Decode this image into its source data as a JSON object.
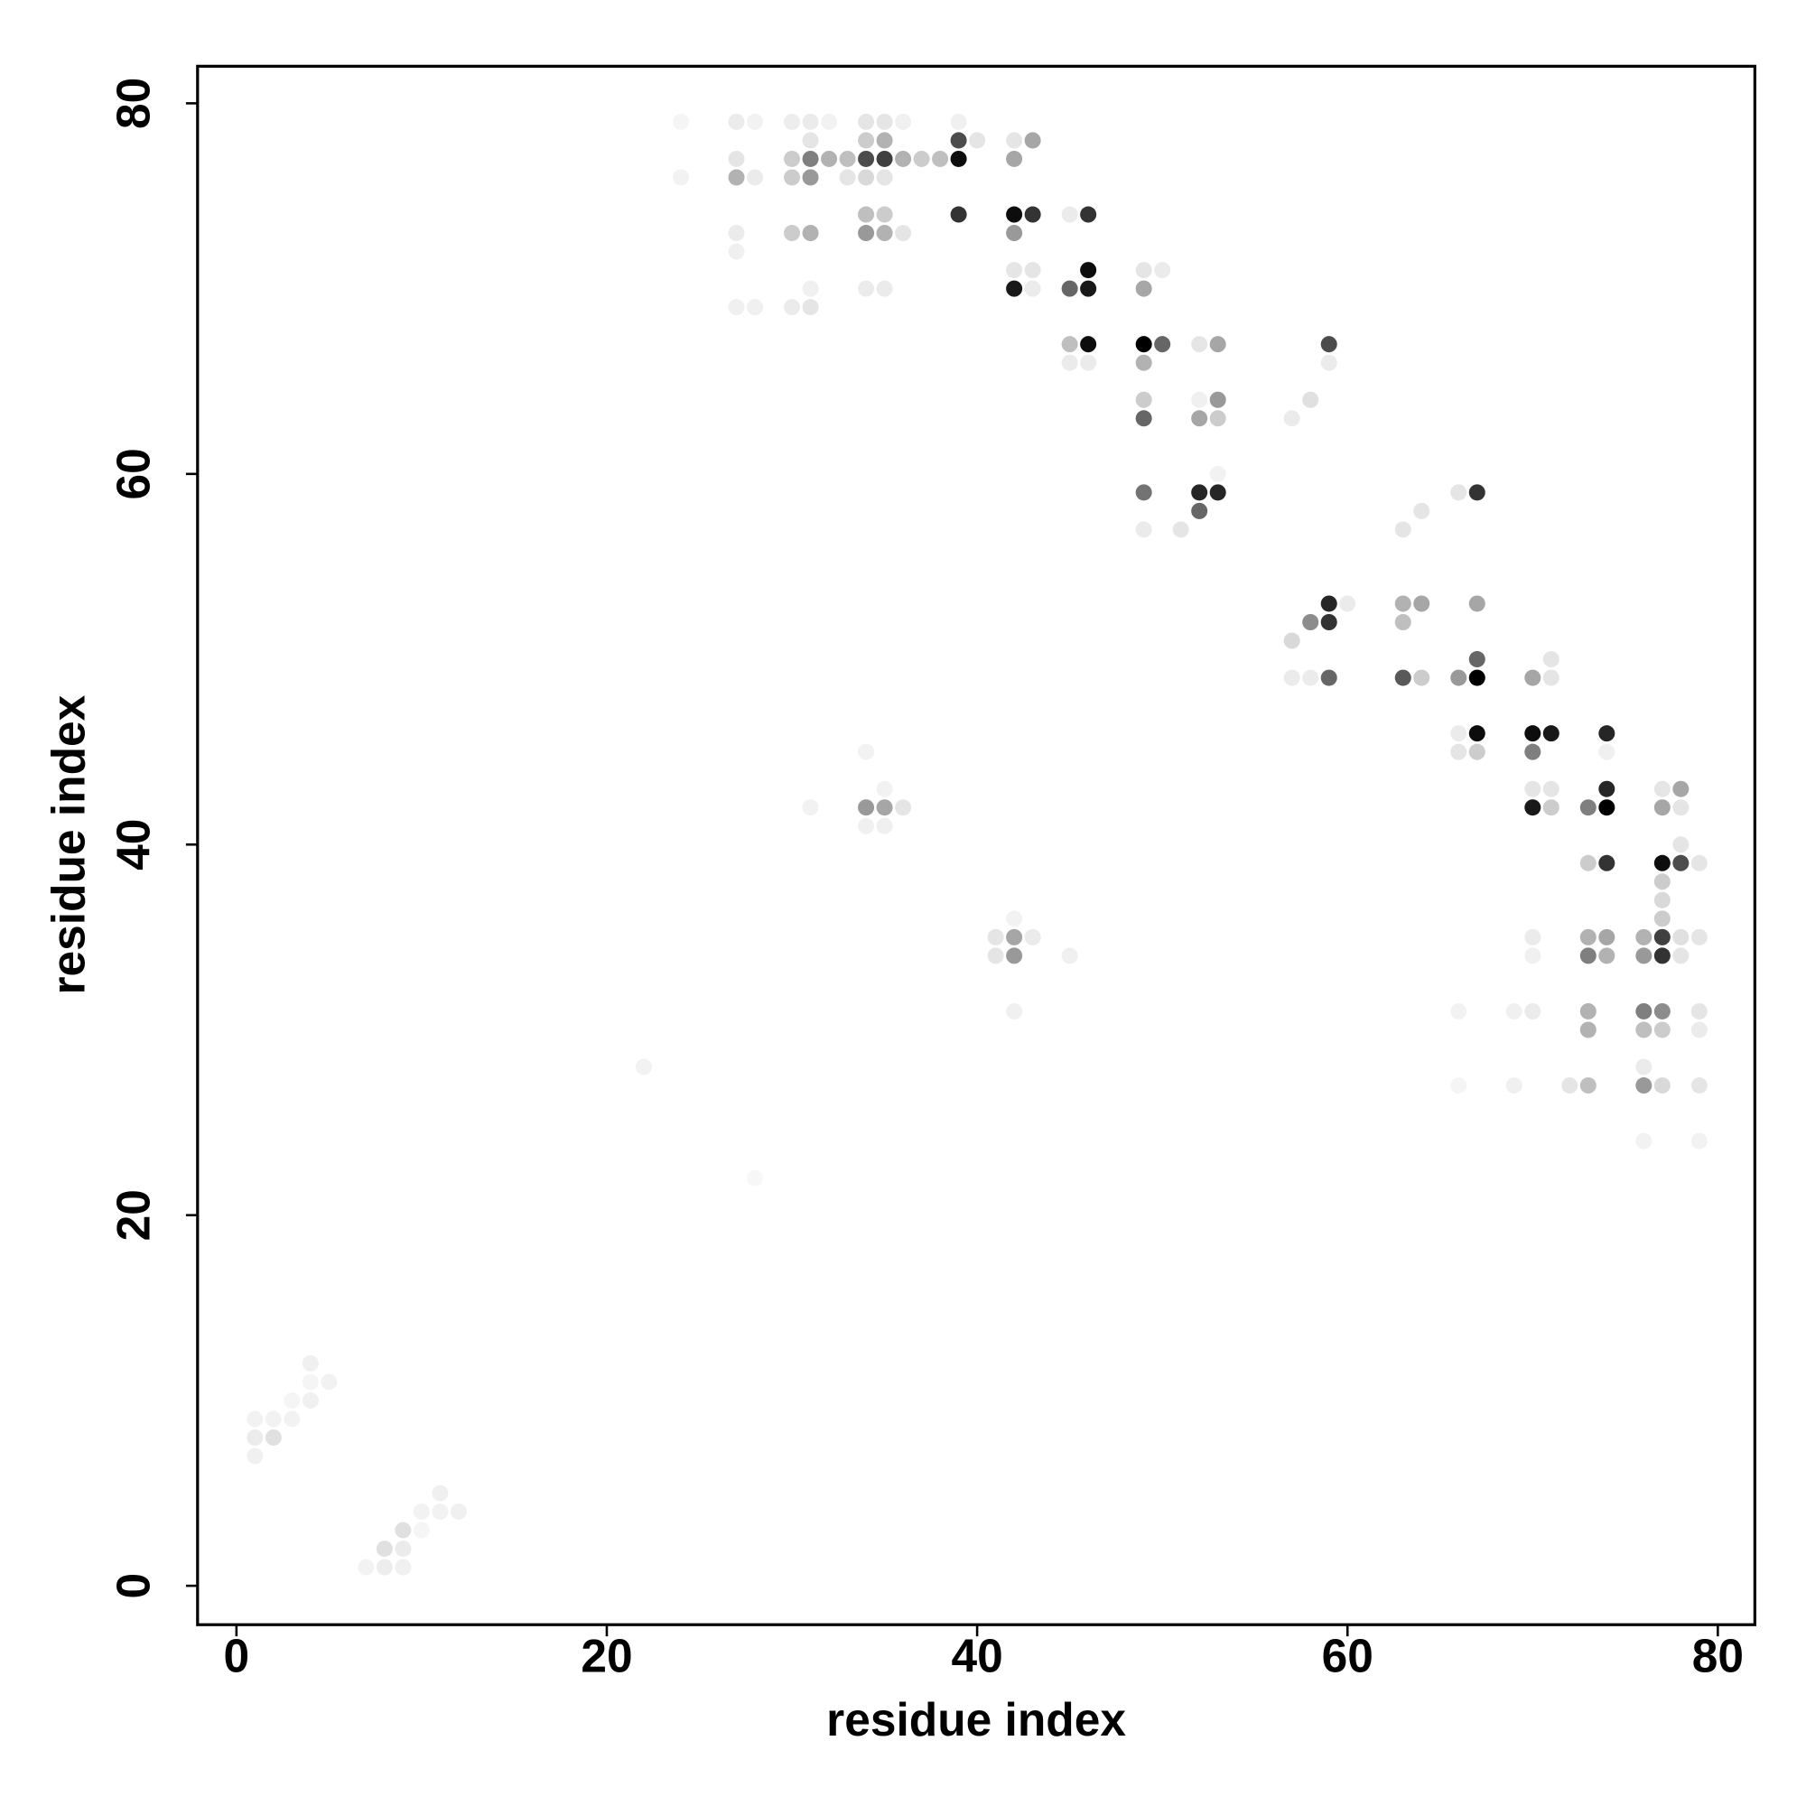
{
  "chart_data": {
    "type": "scatter",
    "xlabel": "residue index",
    "ylabel": "residue index",
    "xlim": [
      -2.1,
      82
    ],
    "ylim": [
      -2.1,
      82
    ],
    "xticks": [
      0,
      20,
      40,
      60,
      80
    ],
    "yticks": [
      0,
      20,
      40,
      60,
      80
    ],
    "color": "#000000",
    "x": [
      1,
      2,
      3,
      1,
      2,
      1,
      4,
      4,
      5,
      4,
      3,
      9,
      8,
      9,
      7,
      8,
      9,
      10,
      11,
      11,
      12,
      10,
      22,
      28,
      24,
      27,
      28,
      30,
      31,
      32,
      34,
      35,
      36,
      39,
      27,
      30,
      31,
      32,
      33,
      34,
      35,
      36,
      37,
      38,
      39,
      42,
      27,
      28,
      30,
      31,
      33,
      34,
      35,
      24,
      31,
      34,
      35,
      39,
      40,
      42,
      43,
      30,
      31,
      34,
      35,
      36,
      27,
      27,
      34,
      35,
      39,
      42,
      43,
      46,
      45,
      42,
      34,
      35,
      31,
      30,
      31,
      27,
      28,
      42,
      43,
      42,
      43,
      45,
      46,
      46,
      49,
      49,
      50,
      45,
      46,
      45,
      46,
      49,
      50,
      52,
      53,
      49,
      59,
      59,
      49,
      49,
      52,
      53,
      53,
      52,
      57,
      58,
      49,
      52,
      53,
      52,
      49,
      51,
      53,
      66,
      67,
      63,
      64,
      59,
      60,
      63,
      64,
      67,
      59,
      58,
      63,
      57,
      57,
      58,
      59,
      63,
      64,
      66,
      67,
      67,
      70,
      71,
      71,
      66,
      67,
      70,
      71,
      74,
      66,
      67,
      70,
      74,
      70,
      71,
      70,
      71,
      73,
      74,
      74,
      77,
      78,
      77,
      78,
      34,
      35,
      36,
      34,
      35,
      35,
      31,
      34,
      73,
      74,
      77,
      78,
      79,
      77,
      78,
      77,
      77,
      73,
      74,
      76,
      77,
      78,
      79,
      70,
      73,
      74,
      76,
      77,
      78,
      70,
      73,
      76,
      77,
      79,
      69,
      70,
      73,
      76,
      77,
      79,
      73,
      76,
      77,
      79,
      69,
      72,
      76,
      76,
      79,
      66,
      66,
      42,
      42,
      41,
      41,
      43,
      45,
      42,
      42
    ],
    "y": [
      9,
      9,
      9,
      8,
      8,
      7,
      12,
      11,
      11,
      10,
      10,
      3,
      2,
      2,
      1,
      1,
      1,
      4,
      4,
      5,
      4,
      3,
      28,
      22,
      79,
      79,
      79,
      79,
      79,
      79,
      79,
      79,
      79,
      79,
      77,
      77,
      77,
      77,
      77,
      77,
      77,
      77,
      77,
      77,
      77,
      77,
      76,
      76,
      76,
      76,
      76,
      76,
      76,
      76,
      78,
      78,
      78,
      78,
      78,
      78,
      78,
      73,
      73,
      73,
      73,
      73,
      73,
      72,
      74,
      74,
      74,
      74,
      74,
      74,
      74,
      73,
      70,
      70,
      70,
      69,
      69,
      69,
      69,
      71,
      71,
      70,
      70,
      70,
      70,
      71,
      70,
      71,
      71,
      67,
      67,
      66,
      66,
      67,
      67,
      67,
      67,
      66,
      67,
      66,
      64,
      63,
      63,
      63,
      64,
      64,
      63,
      64,
      59,
      59,
      59,
      58,
      57,
      57,
      60,
      59,
      59,
      57,
      58,
      53,
      53,
      53,
      53,
      53,
      52,
      52,
      52,
      51,
      49,
      49,
      49,
      49,
      49,
      49,
      49,
      50,
      49,
      49,
      50,
      46,
      46,
      46,
      46,
      46,
      45,
      45,
      45,
      45,
      43,
      43,
      42,
      42,
      42,
      42,
      43,
      43,
      43,
      42,
      42,
      42,
      42,
      42,
      41,
      41,
      43,
      42,
      45,
      39,
      39,
      39,
      39,
      39,
      38,
      40,
      37,
      36,
      35,
      35,
      35,
      35,
      35,
      35,
      35,
      34,
      34,
      34,
      34,
      34,
      34,
      31,
      31,
      31,
      31,
      31,
      31,
      30,
      30,
      30,
      30,
      27,
      27,
      27,
      27,
      27,
      27,
      28,
      24,
      24,
      31,
      27,
      35,
      34,
      35,
      34,
      35,
      34,
      31,
      36
    ],
    "values": [
      0.05,
      0.05,
      0.05,
      0.08,
      0.12,
      0.06,
      0.06,
      0.04,
      0.05,
      0.06,
      0.04,
      0.12,
      0.12,
      0.08,
      0.05,
      0.07,
      0.06,
      0.05,
      0.05,
      0.06,
      0.06,
      0.04,
      0.05,
      0.03,
      0.04,
      0.08,
      0.05,
      0.07,
      0.08,
      0.05,
      0.1,
      0.1,
      0.06,
      0.06,
      0.1,
      0.2,
      0.5,
      0.3,
      0.25,
      0.7,
      0.75,
      0.3,
      0.2,
      0.25,
      0.95,
      0.35,
      0.3,
      0.08,
      0.2,
      0.4,
      0.1,
      0.15,
      0.1,
      0.05,
      0.1,
      0.2,
      0.3,
      0.7,
      0.1,
      0.1,
      0.35,
      0.2,
      0.3,
      0.4,
      0.3,
      0.1,
      0.08,
      0.06,
      0.25,
      0.2,
      0.8,
      0.95,
      0.8,
      0.8,
      0.08,
      0.4,
      0.08,
      0.08,
      0.06,
      0.08,
      0.1,
      0.06,
      0.06,
      0.1,
      0.1,
      0.9,
      0.08,
      0.6,
      0.9,
      0.95,
      0.35,
      0.1,
      0.08,
      0.25,
      0.95,
      0.08,
      0.08,
      1,
      0.6,
      0.1,
      0.35,
      0.3,
      0.7,
      0.08,
      0.2,
      0.6,
      0.35,
      0.2,
      0.4,
      0.06,
      0.08,
      0.12,
      0.55,
      0.85,
      0.85,
      0.6,
      0.08,
      0.1,
      0.05,
      0.1,
      0.8,
      0.1,
      0.1,
      0.85,
      0.08,
      0.3,
      0.35,
      0.35,
      0.8,
      0.45,
      0.25,
      0.15,
      0.08,
      0.08,
      0.6,
      0.65,
      0.2,
      0.4,
      1,
      0.6,
      0.35,
      0.1,
      0.1,
      0.08,
      0.95,
      0.95,
      0.9,
      0.85,
      0.1,
      0.2,
      0.5,
      0.06,
      0.1,
      0.1,
      0.9,
      0.2,
      0.5,
      1,
      0.85,
      0.1,
      0.35,
      0.35,
      0.1,
      0.4,
      0.35,
      0.1,
      0.06,
      0.06,
      0.05,
      0.05,
      0.05,
      0.2,
      0.8,
      0.95,
      0.7,
      0.1,
      0.2,
      0.1,
      0.15,
      0.2,
      0.3,
      0.35,
      0.3,
      0.75,
      0.12,
      0.1,
      0.08,
      0.5,
      0.3,
      0.4,
      0.8,
      0.1,
      0.06,
      0.3,
      0.5,
      0.45,
      0.1,
      0.06,
      0.08,
      0.3,
      0.25,
      0.2,
      0.08,
      0.25,
      0.4,
      0.15,
      0.1,
      0.06,
      0.1,
      0.08,
      0.05,
      0.05,
      0.05,
      0.04,
      0.35,
      0.4,
      0.1,
      0.1,
      0.08,
      0.06,
      0.06,
      0.05
    ]
  }
}
